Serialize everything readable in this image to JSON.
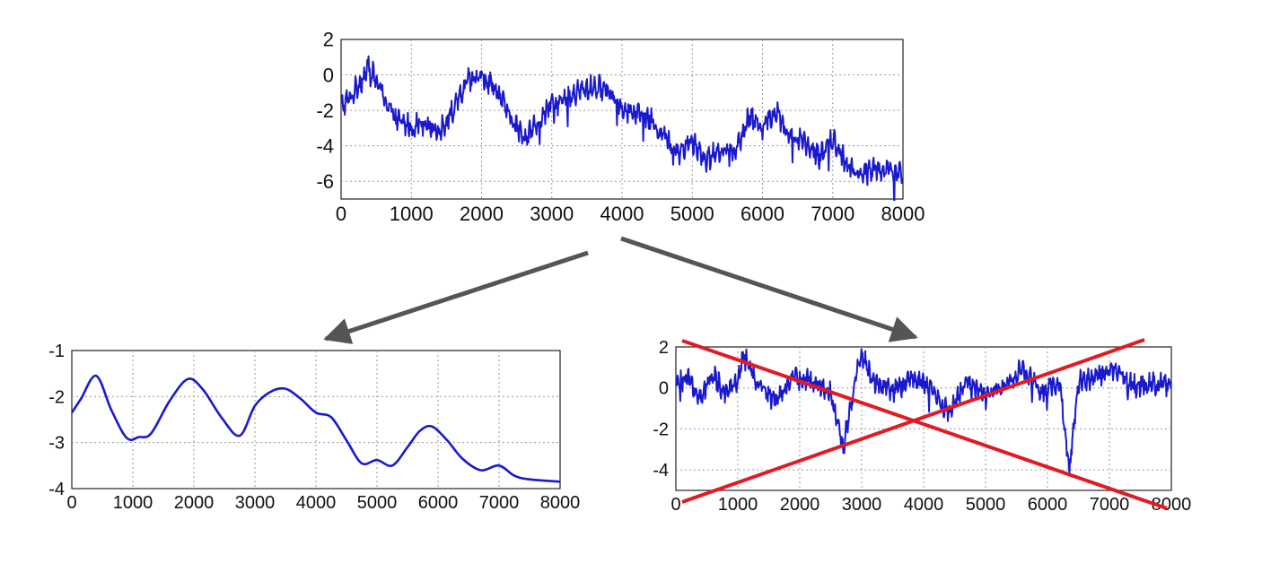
{
  "colors": {
    "series": "#1a1acc",
    "arrow": "#555555",
    "cross": "#e01b24",
    "grid": "#9a9a9a"
  },
  "arrows": [
    {
      "from_chart": 0,
      "to_chart": 1
    },
    {
      "from_chart": 0,
      "to_chart": 2
    }
  ],
  "chart_data": [
    {
      "type": "line",
      "title": "",
      "xlabel": "",
      "ylabel": "",
      "xlim": [
        0,
        8000
      ],
      "ylim": [
        -7,
        2
      ],
      "xticks": [
        0,
        1000,
        2000,
        3000,
        4000,
        5000,
        6000,
        7000,
        8000
      ],
      "yticks": [
        2,
        0,
        -2,
        -4,
        -6
      ],
      "grid": true,
      "series": [
        {
          "style": "noisy",
          "x": [
            0,
            150,
            300,
            400,
            600,
            800,
            1000,
            1200,
            1400,
            1600,
            1800,
            2000,
            2200,
            2400,
            2600,
            2800,
            3000,
            3200,
            3400,
            3600,
            3800,
            4000,
            4200,
            4400,
            4600,
            4800,
            5000,
            5200,
            5400,
            5600,
            5800,
            6000,
            6200,
            6400,
            6600,
            6800,
            7000,
            7200,
            7400,
            7600,
            7800,
            8000
          ],
          "values": [
            -1.8,
            -1.2,
            -0.2,
            0.5,
            -1.2,
            -2.6,
            -2.9,
            -2.6,
            -3.2,
            -2.0,
            -0.4,
            -0.1,
            -0.7,
            -2.4,
            -3.5,
            -2.8,
            -1.6,
            -1.5,
            -0.9,
            -0.7,
            -0.8,
            -1.8,
            -2.1,
            -2.5,
            -3.5,
            -4.3,
            -3.7,
            -4.8,
            -4.2,
            -4.4,
            -2.4,
            -2.9,
            -2.0,
            -3.6,
            -3.8,
            -4.6,
            -3.6,
            -5.0,
            -5.6,
            -5.3,
            -5.4,
            -5.6
          ]
        }
      ]
    },
    {
      "type": "line",
      "title": "",
      "xlabel": "",
      "ylabel": "",
      "xlim": [
        0,
        8000
      ],
      "ylim": [
        -4,
        -1
      ],
      "xticks": [
        0,
        1000,
        2000,
        3000,
        4000,
        5000,
        6000,
        7000,
        8000
      ],
      "yticks": [
        -1,
        -2,
        -3,
        -4
      ],
      "grid": true,
      "series": [
        {
          "style": "smooth",
          "x": [
            0,
            150,
            400,
            650,
            900,
            1100,
            1300,
            1600,
            1900,
            2150,
            2450,
            2750,
            3000,
            3250,
            3500,
            3750,
            4000,
            4250,
            4500,
            4750,
            5000,
            5250,
            5500,
            5700,
            5900,
            6150,
            6400,
            6700,
            7000,
            7250,
            7500,
            8000
          ],
          "values": [
            -2.35,
            -2.05,
            -1.55,
            -2.3,
            -2.9,
            -2.88,
            -2.8,
            -2.1,
            -1.62,
            -1.85,
            -2.45,
            -2.85,
            -2.2,
            -1.9,
            -1.83,
            -2.05,
            -2.35,
            -2.45,
            -2.95,
            -3.45,
            -3.38,
            -3.5,
            -3.1,
            -2.75,
            -2.65,
            -2.95,
            -3.35,
            -3.6,
            -3.5,
            -3.72,
            -3.8,
            -3.85
          ]
        }
      ]
    },
    {
      "type": "line",
      "title": "",
      "xlabel": "",
      "ylabel": "",
      "xlim": [
        0,
        8000
      ],
      "ylim": [
        -5,
        3
      ],
      "xticks": [
        0,
        1000,
        2000,
        3000,
        4000,
        5000,
        6000,
        7000,
        8000
      ],
      "yticks": [
        2,
        0,
        -2,
        -4
      ],
      "grid": true,
      "crossed_out": true,
      "series": [
        {
          "style": "noisy",
          "x": [
            0,
            200,
            400,
            600,
            800,
            1000,
            1100,
            1300,
            1600,
            1900,
            2200,
            2500,
            2700,
            2900,
            3000,
            3200,
            3500,
            3800,
            4100,
            4400,
            4700,
            5000,
            5300,
            5600,
            5900,
            6200,
            6350,
            6500,
            6800,
            7100,
            7400,
            7700,
            8000
          ],
          "values": [
            0.2,
            0.4,
            -0.4,
            0.6,
            -0.2,
            0.4,
            1.8,
            0.3,
            -0.6,
            0.5,
            0.3,
            -0.2,
            -3.0,
            0.4,
            1.6,
            0.3,
            -0.2,
            0.5,
            0.0,
            -1.2,
            0.4,
            -0.5,
            0.2,
            0.9,
            -0.3,
            0.4,
            -4.1,
            0.3,
            0.6,
            0.8,
            0.1,
            0.2,
            0.1
          ]
        }
      ]
    }
  ]
}
